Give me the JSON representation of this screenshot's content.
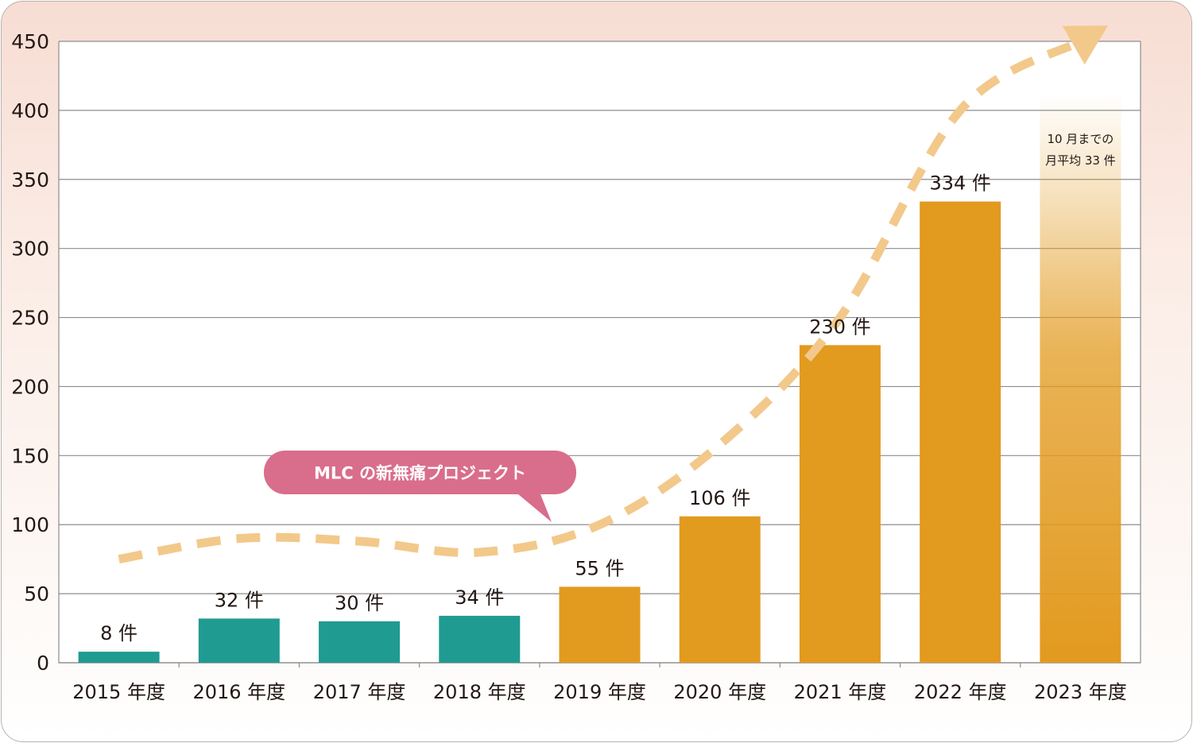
{
  "chart_data": {
    "type": "bar",
    "categories": [
      "2015 年度",
      "2016 年度",
      "2017 年度",
      "2018 年度",
      "2019 年度",
      "2020 年度",
      "2021 年度",
      "2022 年度",
      "2023 年度"
    ],
    "values": [
      8,
      32,
      30,
      34,
      55,
      106,
      230,
      334,
      412
    ],
    "value_labels": [
      "8 件",
      "32 件",
      "30 件",
      "34 件",
      "55 件",
      "106 件",
      "230 件",
      "334 件",
      ""
    ],
    "projected_note": [
      "10 月までの",
      "月平均 33 件"
    ],
    "title": "",
    "xlabel": "",
    "ylabel": "",
    "ylim": [
      0,
      450
    ],
    "yticks": [
      0,
      50,
      100,
      150,
      200,
      250,
      300,
      350,
      400,
      450
    ],
    "grid": true,
    "annotation": "MLC の新無痛プロジェクト",
    "trend_line": {
      "style": "dashed-arrow",
      "values": [
        75,
        90,
        88,
        80,
        100,
        158,
        250,
        400,
        450
      ]
    },
    "colors": {
      "before_project": "#1f9b91",
      "after_project": "#e29a1f",
      "callout": "#d96d8c",
      "trend": "#f2c98a"
    }
  }
}
